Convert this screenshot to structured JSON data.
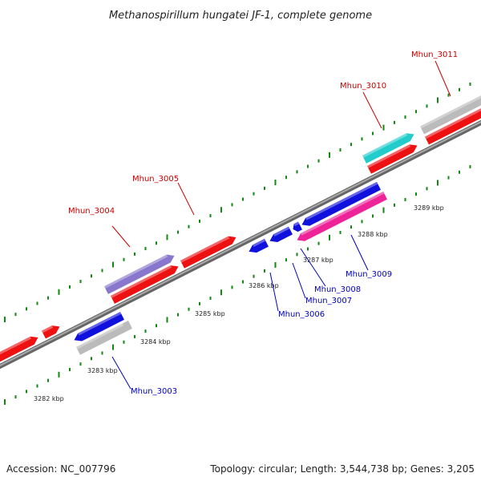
{
  "title": "Methanospirillum hungatei JF-1, complete genome",
  "footer": {
    "accession": "Accession: NC_007796",
    "summary": "Topology: circular; Length: 3,544,738 bp; Genes: 3,205"
  },
  "colors": {
    "backbone": "#888888",
    "tick_outer": "#118811",
    "tick_inner": "#118811",
    "label_forward": "#cc0000",
    "label_reverse": "#0000bb"
  },
  "ticks": [
    {
      "label": "3282 kbp"
    },
    {
      "label": "3283 kbp"
    },
    {
      "label": "3284 kbp"
    },
    {
      "label": "3285 kbp"
    },
    {
      "label": "3286 kbp"
    },
    {
      "label": "3287 kbp"
    },
    {
      "label": "3288 kbp"
    },
    {
      "label": "3289 kbp"
    }
  ],
  "gene_labels": [
    {
      "text": "Mhun_3003",
      "color": "#0000bb"
    },
    {
      "text": "Mhun_3004",
      "color": "#cc0000"
    },
    {
      "text": "Mhun_3005",
      "color": "#cc0000"
    },
    {
      "text": "Mhun_3006",
      "color": "#0000bb"
    },
    {
      "text": "Mhun_3007",
      "color": "#0000bb"
    },
    {
      "text": "Mhun_3008",
      "color": "#0000bb"
    },
    {
      "text": "Mhun_3009",
      "color": "#0000bb"
    },
    {
      "text": "Mhun_3010",
      "color": "#cc0000"
    },
    {
      "text": "Mhun_3011",
      "color": "#cc0000"
    }
  ],
  "genes": [
    {
      "id": "g1",
      "color": "#ee1111"
    },
    {
      "id": "g2",
      "color": "#ee1111"
    },
    {
      "id": "g3",
      "color": "#ee1111"
    },
    {
      "id": "g4",
      "color": "#ee1111"
    },
    {
      "id": "g5",
      "color": "#ee1111"
    },
    {
      "id": "g6",
      "color": "#ee1111"
    },
    {
      "id": "g7",
      "color": "#ee1111"
    },
    {
      "id": "gb1",
      "color": "#1111dd"
    },
    {
      "id": "gb2",
      "color": "#1111dd"
    },
    {
      "id": "gb3",
      "color": "#1111dd"
    },
    {
      "id": "gb4",
      "color": "#1111dd"
    },
    {
      "id": "gb5",
      "color": "#1111dd"
    },
    {
      "id": "gp1",
      "color": "#8877cc"
    },
    {
      "id": "gc1",
      "color": "#22cccc"
    },
    {
      "id": "gm1",
      "color": "#ee2299"
    },
    {
      "id": "gg1",
      "color": "#bbbbbb"
    },
    {
      "id": "gg2",
      "color": "#bbbbbb"
    }
  ]
}
